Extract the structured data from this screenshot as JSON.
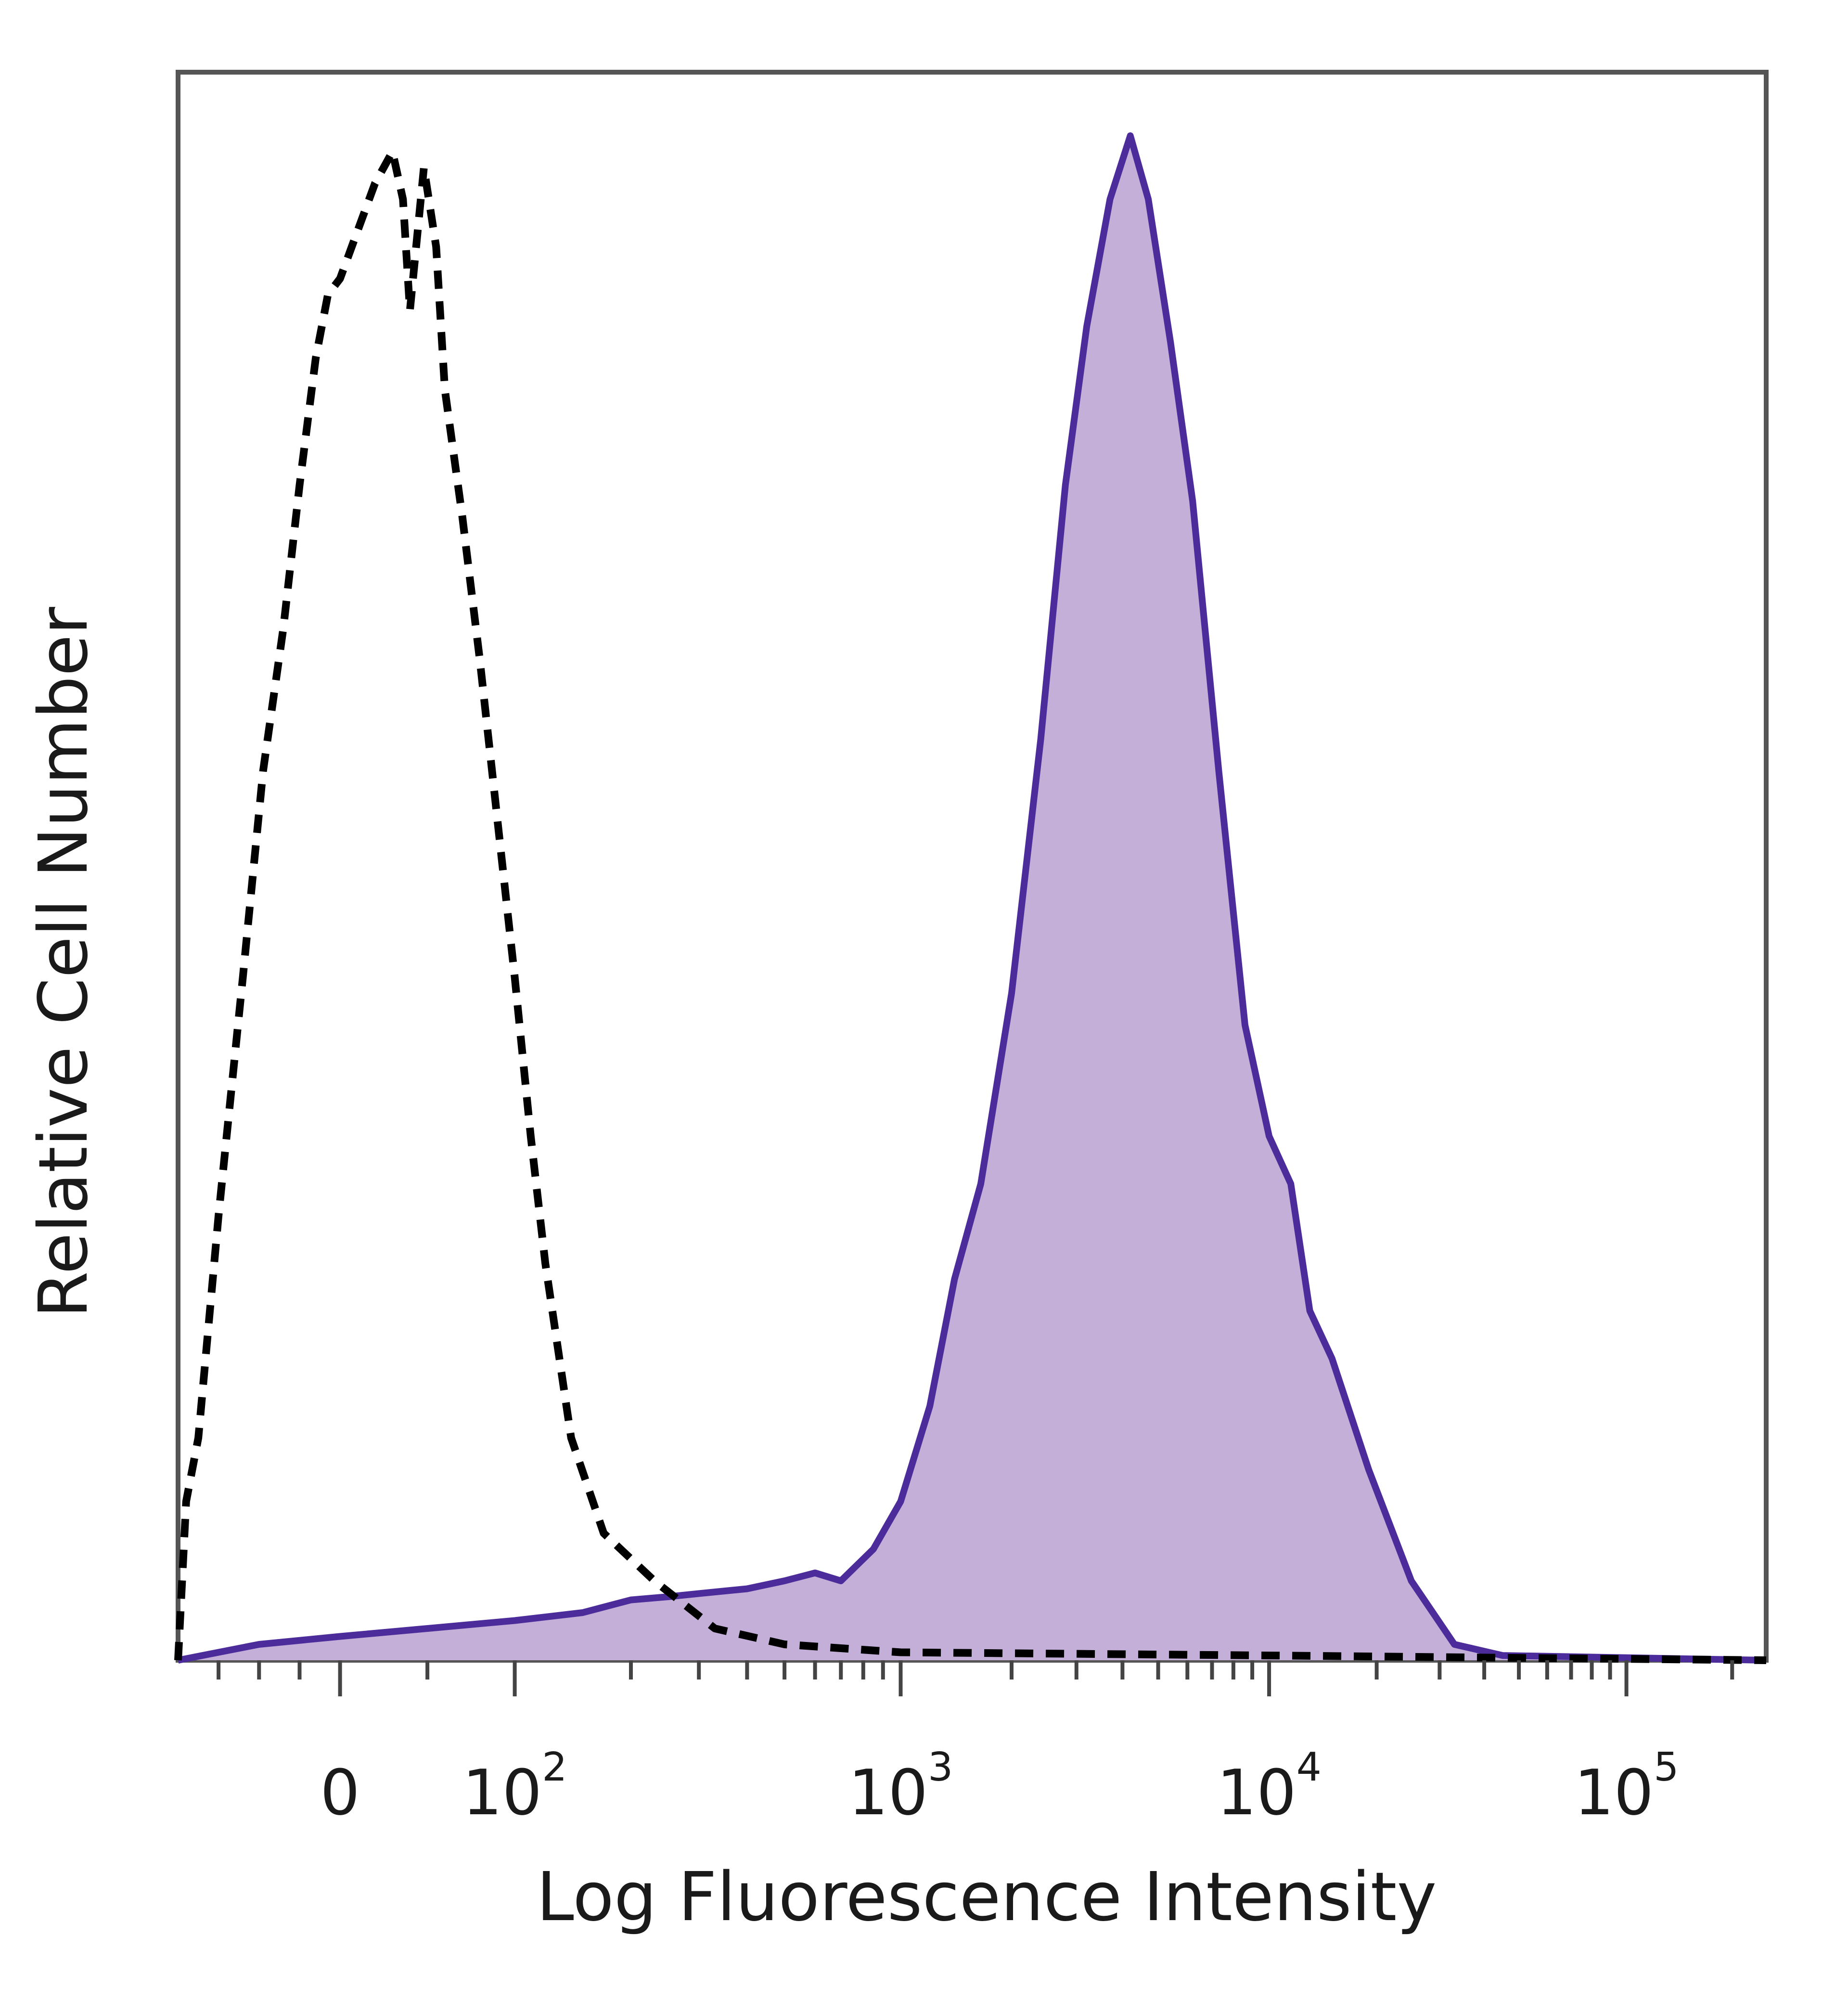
{
  "chart_data": {
    "type": "area",
    "title": "",
    "xlabel": "Log Fluorescence Intensity",
    "ylabel": "Relative Cell Number",
    "x_scale": "biexponential",
    "xlim": [
      -200,
      250000
    ],
    "ylim": [
      0,
      1.0
    ],
    "grid": false,
    "legend": "none",
    "x_ticks": [
      {
        "value": 0,
        "base": "0",
        "exp": ""
      },
      {
        "value": 100,
        "base": "10",
        "exp": "2"
      },
      {
        "value": 1000,
        "base": "10",
        "exp": "3"
      },
      {
        "value": 10000,
        "base": "10",
        "exp": "4"
      },
      {
        "value": 100000,
        "base": "10",
        "exp": "5"
      }
    ],
    "series": [
      {
        "style": "dashed",
        "fill": false,
        "color": "#000000",
        "points": [
          [
            -200,
            0.0
          ],
          [
            -190,
            0.1
          ],
          [
            -175,
            0.14
          ],
          [
            -150,
            0.28
          ],
          [
            -120,
            0.43
          ],
          [
            -95,
            0.56
          ],
          [
            -70,
            0.65
          ],
          [
            -50,
            0.74
          ],
          [
            -30,
            0.82
          ],
          [
            -15,
            0.86
          ],
          [
            0,
            0.87
          ],
          [
            10,
            0.9
          ],
          [
            20,
            0.93
          ],
          [
            30,
            0.95
          ],
          [
            36,
            0.92
          ],
          [
            40,
            0.85
          ],
          [
            48,
            0.94
          ],
          [
            55,
            0.89
          ],
          [
            60,
            0.8
          ],
          [
            70,
            0.72
          ],
          [
            80,
            0.63
          ],
          [
            90,
            0.53
          ],
          [
            100,
            0.43
          ],
          [
            110,
            0.33
          ],
          [
            120,
            0.25
          ],
          [
            140,
            0.14
          ],
          [
            170,
            0.08
          ],
          [
            230,
            0.05
          ],
          [
            330,
            0.02
          ],
          [
            500,
            0.01
          ],
          [
            1000,
            0.005
          ],
          [
            10000,
            0.003
          ],
          [
            250000,
            0.0
          ]
        ]
      },
      {
        "style": "solid",
        "fill": true,
        "color": "#4b2c9a",
        "fill_color": "#c3afd7",
        "points": [
          [
            -200,
            0.0
          ],
          [
            -100,
            0.01
          ],
          [
            0,
            0.015
          ],
          [
            50,
            0.02
          ],
          [
            100,
            0.025
          ],
          [
            150,
            0.03
          ],
          [
            200,
            0.038
          ],
          [
            250,
            0.04
          ],
          [
            300,
            0.042
          ],
          [
            400,
            0.045
          ],
          [
            500,
            0.05
          ],
          [
            600,
            0.055
          ],
          [
            700,
            0.05
          ],
          [
            850,
            0.07
          ],
          [
            1000,
            0.1
          ],
          [
            1200,
            0.16
          ],
          [
            1400,
            0.24
          ],
          [
            1650,
            0.3
          ],
          [
            2000,
            0.42
          ],
          [
            2400,
            0.58
          ],
          [
            2800,
            0.74
          ],
          [
            3200,
            0.84
          ],
          [
            3700,
            0.92
          ],
          [
            4200,
            0.96
          ],
          [
            4700,
            0.92
          ],
          [
            5400,
            0.83
          ],
          [
            6200,
            0.73
          ],
          [
            7300,
            0.56
          ],
          [
            8600,
            0.4
          ],
          [
            10000,
            0.33
          ],
          [
            11500,
            0.3
          ],
          [
            13000,
            0.22
          ],
          [
            15000,
            0.19
          ],
          [
            19000,
            0.12
          ],
          [
            25000,
            0.05
          ],
          [
            33000,
            0.01
          ],
          [
            45000,
            0.003
          ],
          [
            250000,
            0.0
          ]
        ]
      }
    ]
  }
}
